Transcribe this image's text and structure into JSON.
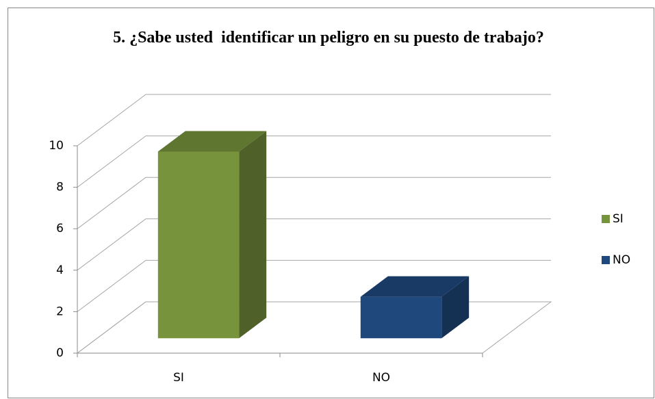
{
  "chart_data": {
    "type": "bar3d",
    "title": "5. ¿Sabe usted  identificar un peligro en su puesto de trabajo?",
    "categories": [
      "SI",
      "NO"
    ],
    "series": [
      {
        "name": "SI",
        "color": "#77933c",
        "values": [
          9,
          null
        ]
      },
      {
        "name": "NO",
        "color": "#1f497d",
        "values": [
          null,
          2
        ]
      }
    ],
    "ylim": [
      0,
      10
    ],
    "yticks": [
      0,
      2,
      4,
      6,
      8,
      10
    ],
    "grid": true,
    "legend": "right"
  }
}
